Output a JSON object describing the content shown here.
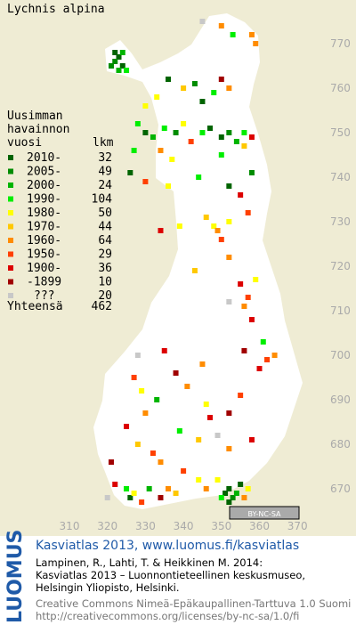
{
  "title": "Lychnis alpina",
  "legend": {
    "header": [
      "Uusimman",
      "havainnon",
      "vuosi"
    ],
    "count_header": "lkm",
    "rows": [
      {
        "label": "2010-",
        "count": 32,
        "color": "#006400"
      },
      {
        "label": "2005-",
        "count": 49,
        "color": "#008c00"
      },
      {
        "label": "2000-",
        "count": 24,
        "color": "#00b400"
      },
      {
        "label": "1990-",
        "count": 104,
        "color": "#00ee00"
      },
      {
        "label": "1980-",
        "count": 50,
        "color": "#ffff00"
      },
      {
        "label": "1970-",
        "count": 44,
        "color": "#ffc800"
      },
      {
        "label": "1960-",
        "count": 64,
        "color": "#ff8c00"
      },
      {
        "label": "1950-",
        "count": 29,
        "color": "#ff4000"
      },
      {
        "label": "1900-",
        "count": 36,
        "color": "#dc0000"
      },
      {
        "label": "-1899",
        "count": 10,
        "color": "#a00000"
      },
      {
        "label": "???",
        "count": 20,
        "color": "#c8c8c8"
      }
    ],
    "total_label": "Yhteensä",
    "total": 462
  },
  "xticks": [
    310,
    320,
    330,
    340,
    350,
    360,
    370
  ],
  "yticks": [
    670,
    680,
    690,
    700,
    710,
    720,
    730,
    740,
    750,
    760,
    770
  ],
  "squares": [
    [
      322,
      768,
      0
    ],
    [
      323,
      767,
      0
    ],
    [
      322,
      766,
      1
    ],
    [
      324,
      765,
      0
    ],
    [
      323,
      764,
      2
    ],
    [
      321,
      765,
      1
    ],
    [
      324,
      768,
      2
    ],
    [
      325,
      764,
      3
    ],
    [
      345,
      775,
      10
    ],
    [
      350,
      774,
      6
    ],
    [
      353,
      772,
      3
    ],
    [
      358,
      772,
      6
    ],
    [
      359,
      770,
      6
    ],
    [
      336,
      762,
      0
    ],
    [
      340,
      760,
      5
    ],
    [
      343,
      761,
      1
    ],
    [
      350,
      762,
      9
    ],
    [
      352,
      760,
      6
    ],
    [
      348,
      759,
      3
    ],
    [
      333,
      758,
      4
    ],
    [
      330,
      756,
      4
    ],
    [
      345,
      757,
      0
    ],
    [
      328,
      752,
      3
    ],
    [
      330,
      750,
      0
    ],
    [
      332,
      749,
      2
    ],
    [
      335,
      751,
      3
    ],
    [
      338,
      750,
      1
    ],
    [
      340,
      752,
      4
    ],
    [
      342,
      748,
      7
    ],
    [
      345,
      750,
      3
    ],
    [
      347,
      751,
      0
    ],
    [
      350,
      749,
      0
    ],
    [
      352,
      750,
      1
    ],
    [
      354,
      748,
      2
    ],
    [
      356,
      750,
      3
    ],
    [
      356,
      747,
      5
    ],
    [
      358,
      749,
      8
    ],
    [
      334,
      746,
      6
    ],
    [
      337,
      744,
      4
    ],
    [
      327,
      746,
      3
    ],
    [
      350,
      745,
      3
    ],
    [
      326,
      741,
      0
    ],
    [
      330,
      739,
      7
    ],
    [
      336,
      738,
      4
    ],
    [
      344,
      740,
      3
    ],
    [
      352,
      738,
      0
    ],
    [
      355,
      736,
      8
    ],
    [
      358,
      741,
      1
    ],
    [
      339,
      729,
      4
    ],
    [
      346,
      731,
      5
    ],
    [
      348,
      729,
      4
    ],
    [
      349,
      728,
      6
    ],
    [
      352,
      730,
      4
    ],
    [
      357,
      732,
      7
    ],
    [
      334,
      728,
      8
    ],
    [
      350,
      726,
      7
    ],
    [
      352,
      722,
      6
    ],
    [
      343,
      719,
      5
    ],
    [
      355,
      716,
      8
    ],
    [
      357,
      713,
      7
    ],
    [
      359,
      717,
      4
    ],
    [
      356,
      711,
      6
    ],
    [
      358,
      708,
      8
    ],
    [
      352,
      712,
      10
    ],
    [
      361,
      703,
      3
    ],
    [
      362,
      699,
      7
    ],
    [
      364,
      700,
      6
    ],
    [
      360,
      697,
      8
    ],
    [
      356,
      701,
      9
    ],
    [
      335,
      701,
      8
    ],
    [
      328,
      700,
      10
    ],
    [
      338,
      696,
      9
    ],
    [
      345,
      698,
      6
    ],
    [
      327,
      695,
      7
    ],
    [
      329,
      692,
      4
    ],
    [
      333,
      690,
      2
    ],
    [
      341,
      693,
      6
    ],
    [
      346,
      689,
      4
    ],
    [
      355,
      691,
      7
    ],
    [
      352,
      687,
      9
    ],
    [
      330,
      687,
      6
    ],
    [
      347,
      686,
      8
    ],
    [
      325,
      684,
      8
    ],
    [
      328,
      680,
      5
    ],
    [
      332,
      678,
      7
    ],
    [
      339,
      683,
      3
    ],
    [
      344,
      681,
      5
    ],
    [
      352,
      679,
      6
    ],
    [
      358,
      681,
      8
    ],
    [
      321,
      676,
      9
    ],
    [
      334,
      676,
      6
    ],
    [
      349,
      682,
      10
    ],
    [
      351,
      669,
      0
    ],
    [
      352,
      670,
      0
    ],
    [
      353,
      668,
      1
    ],
    [
      354,
      669,
      2
    ],
    [
      352,
      667,
      0
    ],
    [
      350,
      668,
      3
    ],
    [
      355,
      671,
      0
    ],
    [
      349,
      672,
      4
    ],
    [
      356,
      668,
      6
    ],
    [
      357,
      670,
      4
    ],
    [
      325,
      670,
      3
    ],
    [
      326,
      668,
      0
    ],
    [
      327,
      669,
      4
    ],
    [
      329,
      667,
      7
    ],
    [
      331,
      670,
      2
    ],
    [
      334,
      668,
      9
    ],
    [
      336,
      670,
      6
    ],
    [
      338,
      669,
      5
    ],
    [
      344,
      672,
      4
    ],
    [
      346,
      670,
      6
    ],
    [
      322,
      671,
      8
    ],
    [
      320,
      668,
      10
    ],
    [
      340,
      674,
      7
    ]
  ],
  "license_badge": "BY-NC-SA",
  "credits": {
    "logo": "LUOMUS",
    "link": "Kasviatlas 2013, www.luomus.fi/kasviatlas",
    "citation": [
      "Lampinen, R., Lahti, T. & Heikkinen M. 2014:",
      "Kasviatlas 2013 – Luonnontieteellinen keskusmuseo,",
      "Helsingin Yliopisto, Helsinki."
    ],
    "license": [
      "Creative Commons Nimeä-Epäkaupallinen-Tarttuva 1.0 Suomi",
      "http://creativecommons.org/licenses/by-nc-sa/1.0/fi"
    ]
  }
}
